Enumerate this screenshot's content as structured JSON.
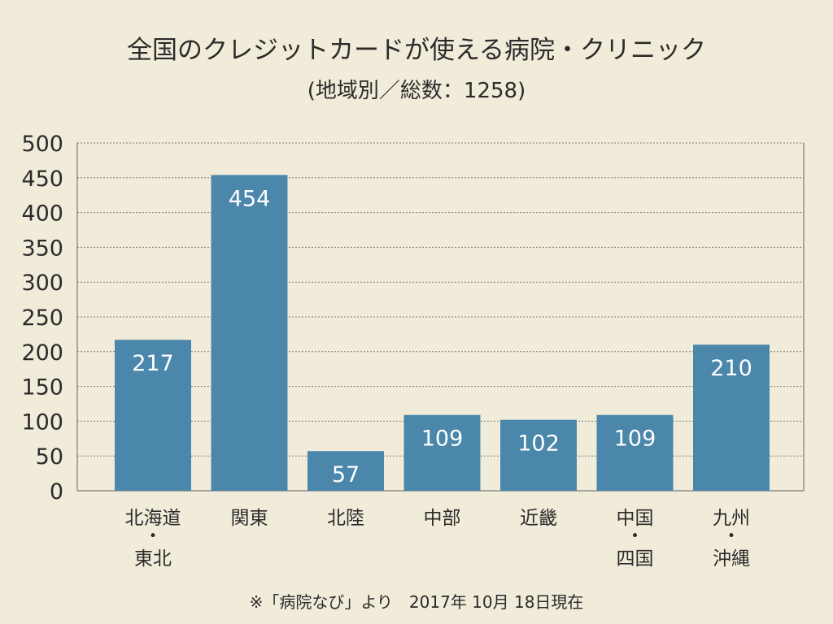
{
  "chart_data": {
    "type": "bar",
    "title": "全国のクレジットカードが使える病院・クリニック",
    "subtitle": "(地域別／総数：1258)",
    "categories": [
      [
        "北海道",
        "・",
        "東北"
      ],
      [
        "関東"
      ],
      [
        "北陸"
      ],
      [
        "中部"
      ],
      [
        "近畿"
      ],
      [
        "中国",
        "・",
        "四国"
      ],
      [
        "九州",
        "・",
        "沖縄"
      ]
    ],
    "values": [
      217,
      454,
      57,
      109,
      102,
      109,
      210
    ],
    "ylim": [
      0,
      500
    ],
    "yticks": [
      0,
      50,
      100,
      150,
      200,
      250,
      300,
      350,
      400,
      450,
      500
    ],
    "grid": true,
    "bar_color": "#4a87ab",
    "note": "※「病院なび」より　2017年 10月 18日現在"
  }
}
